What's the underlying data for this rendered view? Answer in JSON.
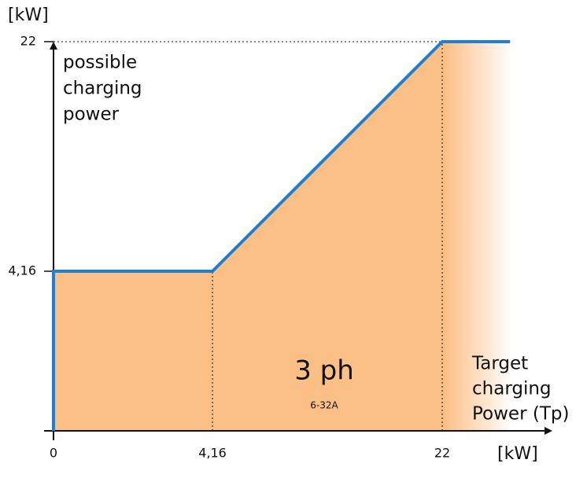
{
  "chart_data": {
    "type": "line",
    "y_label": "[kW]",
    "x_label": "[kW]",
    "annotation": [
      "possible",
      "charging",
      "power"
    ],
    "x_annotation": [
      "Target",
      "charging",
      "Power (Tp)"
    ],
    "center_title": "3 ph",
    "center_subtitle": "6-32A",
    "x": [
      0,
      0,
      4.16,
      22,
      27
    ],
    "series": [
      {
        "name": "possible charging power",
        "color": "#1e7fd6",
        "values": [
          0,
          4.16,
          4.16,
          22,
          22
        ]
      }
    ],
    "fill_color": "#fcbf85",
    "xlim": [
      0,
      30
    ],
    "xticks": [
      0,
      {
        "value": 4.16,
        "label": "4,16"
      },
      22
    ],
    "ylim": [
      0,
      22
    ],
    "yticks": [
      {
        "value": 4.16,
        "label": "4,16"
      },
      22
    ]
  }
}
